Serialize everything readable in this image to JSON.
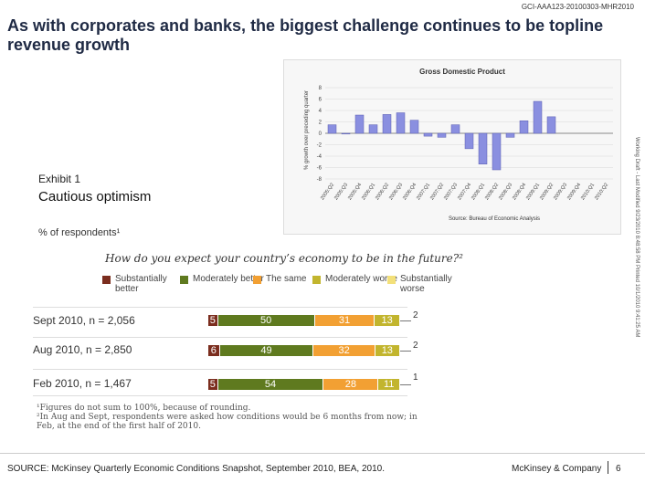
{
  "header": {
    "doc_id": "GCI-AAA123-20100303-MHR2010",
    "title": "As with corporates and banks, the biggest challenge continues to be topline revenue growth"
  },
  "side_note": "Working Draft - Last Modified 9/23/2010 8:48:58 PM   Printed 10/1/2010 9:41:25 AM",
  "exhibit": {
    "label": "Exhibit 1",
    "title": "Cautious optimism",
    "unit_label": "% of respondents¹",
    "question": "How do you expect your country’s economy to be in the future?²"
  },
  "chart_data": [
    {
      "type": "bar",
      "title": "Gross Domestic Product",
      "ylabel": "% growth over preceding quarter",
      "source": "Source: Bureau of Economic Analysis",
      "ylim": [
        -8,
        8
      ],
      "yticks": [
        8,
        6,
        4,
        2,
        0,
        -2,
        -4,
        -6,
        -8
      ],
      "categories": [
        "2005:Q2",
        "2005:Q3",
        "2005:Q4",
        "2006:Q1",
        "2006:Q2",
        "2006:Q3",
        "2006:Q4",
        "2007:Q1",
        "2007:Q2",
        "2007:Q3",
        "2007:Q4",
        "2008:Q1",
        "2008:Q2",
        "2008:Q3",
        "2008:Q4",
        "2009:Q1",
        "2009:Q2",
        "2009:Q3",
        "2009:Q4",
        "2010:Q1",
        "2010:Q2"
      ],
      "values": [
        1.5,
        0,
        3.2,
        1.5,
        3.3,
        3.6,
        2.3,
        -0.5,
        -0.7,
        1.5,
        -2.7,
        -5.4,
        -6.4,
        -0.7,
        2.2,
        5.6,
        2.9,
        null,
        null,
        null,
        null
      ]
    },
    {
      "type": "bar",
      "orientation": "horizontal-stacked",
      "legend": [
        {
          "label": "Substantially better",
          "color": "#7b2d1e"
        },
        {
          "label": "Moderately better",
          "color": "#5f7a1f"
        },
        {
          "label": "The same",
          "color": "#f2a033"
        },
        {
          "label": "Moderately worse",
          "color": "#c2b52e"
        },
        {
          "label": "Substantially worse",
          "color": "#f3e07a"
        }
      ],
      "rows": [
        {
          "label": "Sept 2010, n = 2,056",
          "values": [
            5,
            50,
            31,
            13
          ],
          "tail": "2"
        },
        {
          "label": "Aug 2010, n = 2,850",
          "values": [
            6,
            49,
            32,
            13
          ],
          "tail": "2"
        },
        {
          "label": "Feb 2010, n = 1,467",
          "values": [
            5,
            54,
            28,
            11
          ],
          "tail": "1"
        }
      ]
    }
  ],
  "footnotes": [
    "¹Figures do not sum to 100%, because of rounding.",
    "²In Aug and Sept, respondents were asked how conditions would be 6 months from now; in Feb, at the end of the first half of 2010."
  ],
  "footer": {
    "source": "SOURCE: McKinsey Quarterly Economic Conditions Snapshot, September 2010, BEA, 2010.",
    "brand": "McKinsey & Company",
    "page": "6"
  }
}
